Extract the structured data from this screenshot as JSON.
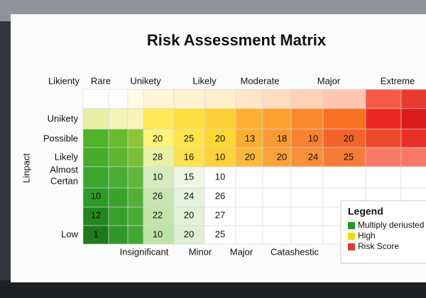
{
  "title": "Risk Assessment Matrix",
  "column_headers": [
    "Likienty",
    "Rare",
    "Unikety",
    "Likely",
    "Moderate",
    "Major",
    "Extreme"
  ],
  "row_labels": [
    "Unikety",
    "Possible",
    "Likely",
    "Almost",
    "Certan",
    "Low"
  ],
  "axis_label": "Linpact",
  "bottom_labels": [
    "Insignificant",
    "Minor",
    "Major",
    "Catashestic"
  ],
  "cells": [
    [
      20,
      25,
      20,
      13,
      18,
      10,
      20
    ],
    [
      28,
      16,
      10,
      20,
      20,
      24,
      25
    ],
    [
      10,
      15,
      10
    ],
    [
      10,
      26,
      24,
      26
    ],
    [
      12,
      22,
      20,
      27
    ],
    [
      1,
      10,
      20,
      25
    ]
  ],
  "legend": {
    "title": "Legend",
    "items": [
      "Multiply deriusted",
      "High",
      "Risk Score"
    ]
  }
}
